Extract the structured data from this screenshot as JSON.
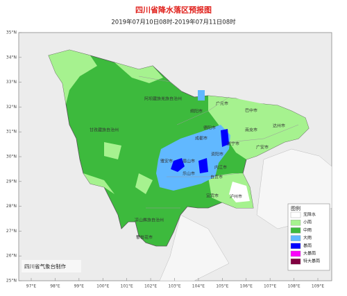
{
  "header": {
    "title": "四川省降水落区预报图",
    "subtitle": "2019年07月10日08时-2019年07月11日08时"
  },
  "axes": {
    "latitudes": [
      "35°N",
      "34°N",
      "33°N",
      "32°N",
      "31°N",
      "30°N",
      "29°N",
      "28°N",
      "27°N",
      "26°N",
      "25°N"
    ],
    "longitudes": [
      "97°E",
      "98°E",
      "99°E",
      "100°E",
      "101°E",
      "102°E",
      "103°E",
      "104°E",
      "105°E",
      "106°E",
      "107°E",
      "108°E",
      "109°E"
    ]
  },
  "cities": [
    "阿坝藏族羌族自治州",
    "甘孜藏族自治州",
    "绵阳市",
    "广元市",
    "巴中市",
    "达州市",
    "南充市",
    "广安市",
    "德阳市",
    "成都市",
    "遂宁市",
    "资阳市",
    "眉山市",
    "雅安市",
    "乐山市",
    "内江市",
    "自贡市",
    "宜宾市",
    "泸州市",
    "凉山彝族自治州",
    "攀枝花市"
  ],
  "legend": {
    "title": "图例",
    "items": [
      {
        "label": "无降水",
        "color": "#ffffff"
      },
      {
        "label": "小雨",
        "color": "#a6f28f"
      },
      {
        "label": "中雨",
        "color": "#3dba3d"
      },
      {
        "label": "大雨",
        "color": "#61b8ff"
      },
      {
        "label": "暴雨",
        "color": "#0000fe"
      },
      {
        "label": "大暴雨",
        "color": "#fa00fa"
      },
      {
        "label": "特大暴雨",
        "color": "#800040"
      }
    ]
  },
  "footer": "四川省气象台制作"
}
